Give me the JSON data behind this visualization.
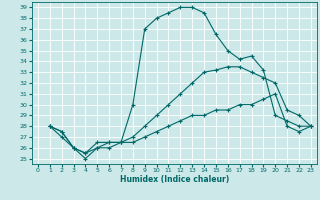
{
  "xlabel": "Humidex (Indice chaleur)",
  "xlim": [
    -0.5,
    23.5
  ],
  "ylim": [
    24.5,
    39.5
  ],
  "yticks": [
    25,
    26,
    27,
    28,
    29,
    30,
    31,
    32,
    33,
    34,
    35,
    36,
    37,
    38,
    39
  ],
  "xticks": [
    0,
    1,
    2,
    3,
    4,
    5,
    6,
    7,
    8,
    9,
    10,
    11,
    12,
    13,
    14,
    15,
    16,
    17,
    18,
    19,
    20,
    21,
    22,
    23
  ],
  "bg_color": "#cce8e8",
  "grid_color": "#ffffff",
  "line_color": "#006868",
  "series1_x": [
    1,
    2,
    3,
    4,
    5,
    6,
    7,
    8,
    9,
    10,
    11,
    12,
    13,
    14,
    15,
    16,
    17,
    18,
    19,
    20,
    21,
    22,
    23
  ],
  "series1_y": [
    28,
    27,
    26,
    25,
    26,
    26,
    26.5,
    30,
    37,
    38,
    38.5,
    39,
    39,
    38.5,
    36.5,
    35,
    34.2,
    34.5,
    33.2,
    29,
    28.5,
    28,
    28
  ],
  "series2_x": [
    1,
    2,
    3,
    4,
    5,
    6,
    7,
    8,
    9,
    10,
    11,
    12,
    13,
    14,
    15,
    16,
    17,
    18,
    19,
    20,
    21,
    22,
    23
  ],
  "series2_y": [
    28,
    27.5,
    26,
    25.5,
    26.5,
    26.5,
    26.5,
    27,
    28,
    29,
    30,
    31,
    32,
    33,
    33.2,
    33.5,
    33.5,
    33,
    32.5,
    32,
    29.5,
    29,
    28
  ],
  "series3_x": [
    1,
    2,
    3,
    4,
    5,
    6,
    7,
    8,
    9,
    10,
    11,
    12,
    13,
    14,
    15,
    16,
    17,
    18,
    19,
    20,
    21,
    22,
    23
  ],
  "series3_y": [
    28,
    27.5,
    26,
    25.5,
    26,
    26.5,
    26.5,
    26.5,
    27,
    27.5,
    28,
    28.5,
    29,
    29,
    29.5,
    29.5,
    30,
    30,
    30.5,
    31,
    28,
    27.5,
    28
  ]
}
